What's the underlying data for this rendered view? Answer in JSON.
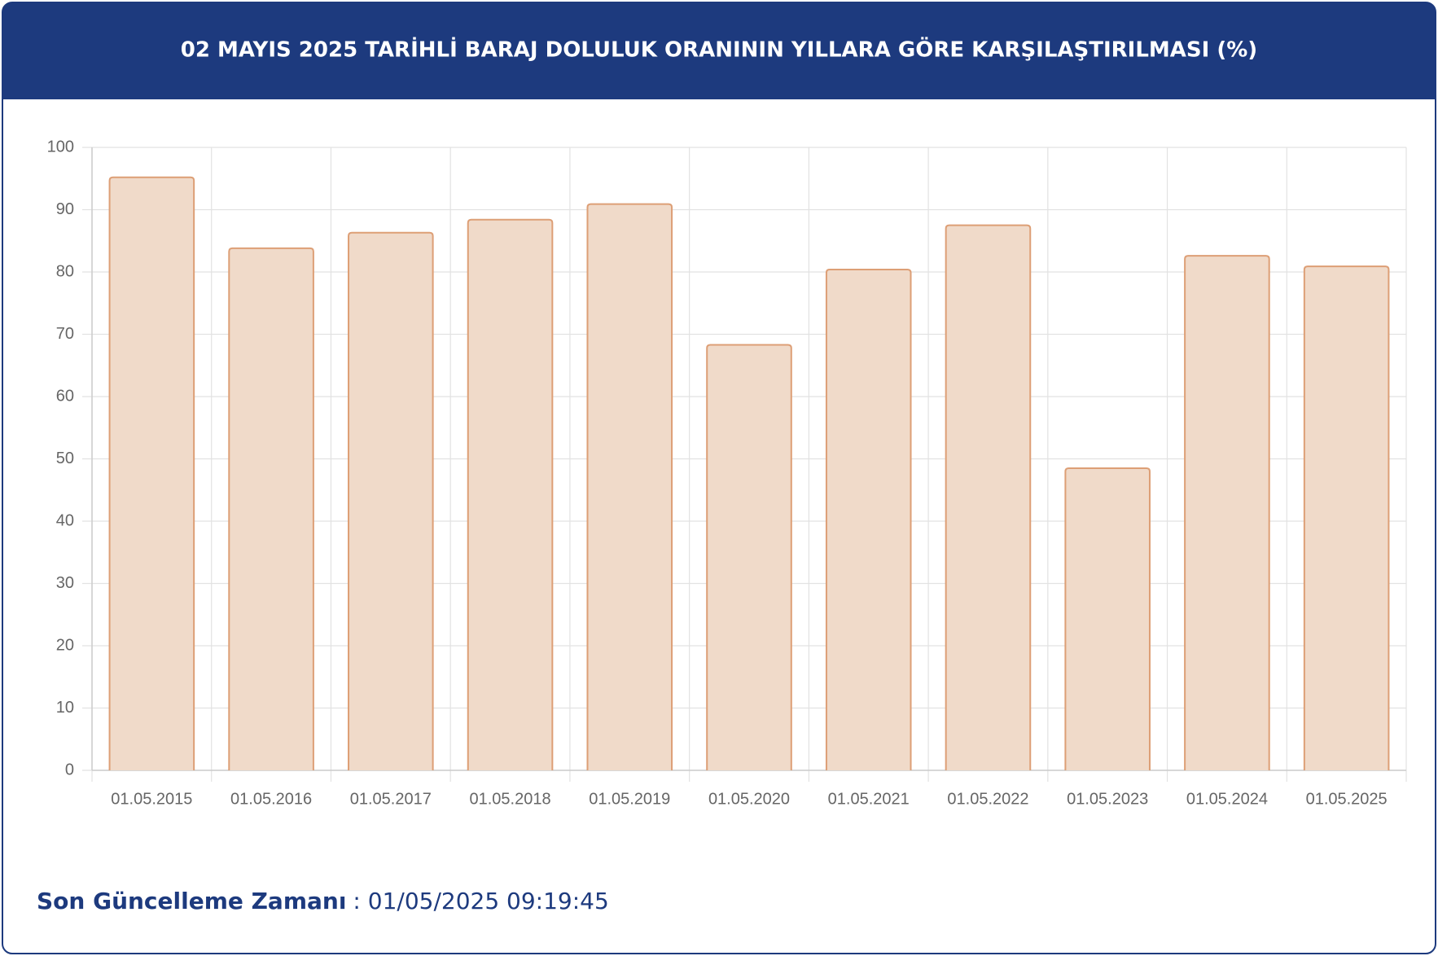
{
  "chart_data": {
    "type": "bar",
    "title": "02 MAYIS 2025 TARİHLİ BARAJ DOLULUK ORANININ YILLARA GÖRE KARŞILAŞTIRILMASI (%)",
    "categories": [
      "01.05.2015",
      "01.05.2016",
      "01.05.2017",
      "01.05.2018",
      "01.05.2019",
      "01.05.2020",
      "01.05.2021",
      "01.05.2022",
      "01.05.2023",
      "01.05.2024",
      "01.05.2025"
    ],
    "values": [
      95.2,
      83.8,
      86.3,
      88.4,
      90.9,
      68.3,
      80.4,
      87.5,
      48.5,
      82.6,
      80.9
    ],
    "color": "#f0dac9",
    "border_color": "#dd9f76",
    "ylim": [
      0,
      100
    ],
    "yticks": [
      0,
      10,
      20,
      30,
      40,
      50,
      60,
      70,
      80,
      90,
      100
    ],
    "grid": true
  },
  "footer": {
    "label": "Son Güncelleme Zamanı",
    "value": ": 01/05/2025 09:19:45"
  }
}
